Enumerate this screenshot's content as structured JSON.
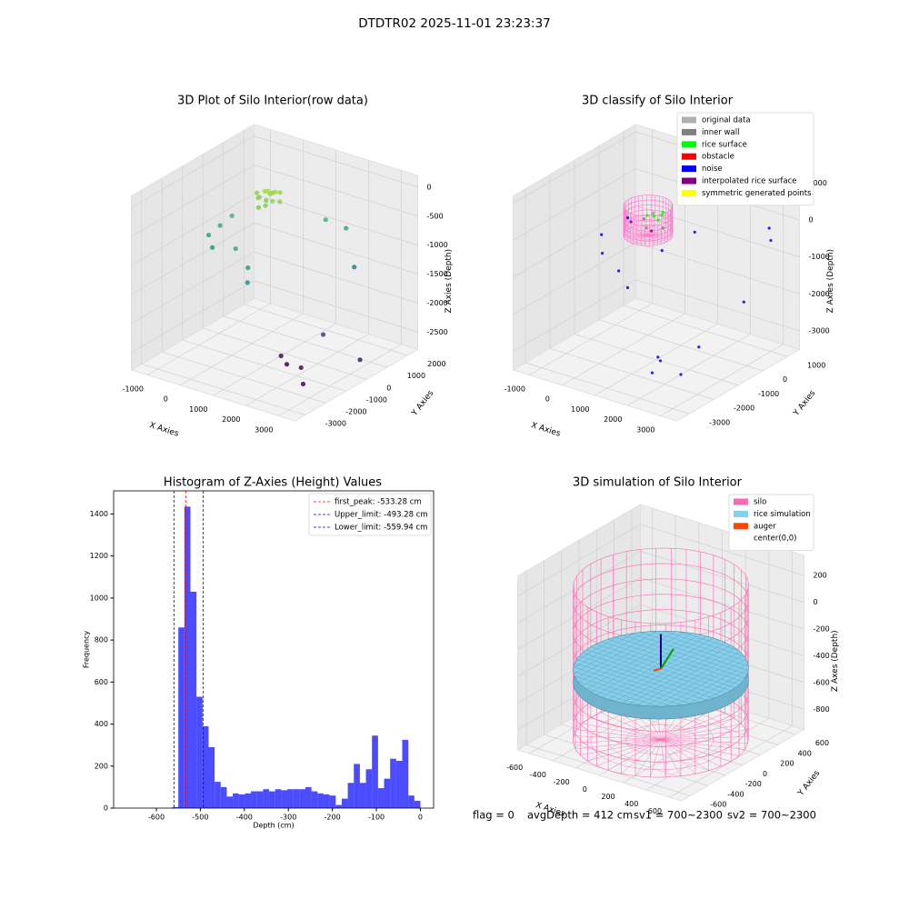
{
  "title": "DTDTR02 2025-11-01 23:23:37",
  "footer": [
    "flag = 0",
    "avgDepth = 412 cm",
    "sv1 = 700~2300",
    "sv2 = 700~2300"
  ],
  "chart_data": [
    {
      "type": "scatter3d",
      "title": "3D Plot of Silo Interior(row data)",
      "xlabel": "X Axies",
      "ylabel": "Y Axies",
      "zlabel": "Z Axies (Depth)",
      "colormap": "viridis",
      "xlim": [
        -1500,
        3500
      ],
      "xticks": [
        -1000,
        0,
        1000,
        2000,
        3000
      ],
      "ylim": [
        -3500,
        2500
      ],
      "yticks": [
        -3000,
        -2000,
        -1000,
        0,
        1000,
        2000
      ],
      "zlim": [
        -2800,
        200
      ],
      "zticks": [
        -2500,
        -2000,
        -1500,
        -1000,
        -500,
        0
      ],
      "series": [
        {
          "points": [
            [
              200,
              300,
              -200
            ],
            [
              300,
              400,
              -250
            ],
            [
              100,
              200,
              -300
            ],
            [
              400,
              500,
              -220
            ],
            [
              0,
              300,
              -350
            ],
            [
              500,
              200,
              -300
            ],
            [
              250,
              600,
              -280
            ],
            [
              150,
              450,
              -400
            ],
            [
              350,
              100,
              -380
            ],
            [
              600,
              400,
              -330
            ],
            [
              -100,
              400,
              -300
            ],
            [
              450,
              650,
              -250
            ],
            [
              200,
              0,
              -420
            ],
            [
              300,
              300,
              -180
            ],
            [
              -1200,
              -200,
              -1100
            ],
            [
              -1100,
              200,
              -1000
            ],
            [
              -900,
              -500,
              -1200
            ],
            [
              -800,
              300,
              -800
            ],
            [
              0,
              -800,
              -1000
            ],
            [
              500,
              -1000,
              -1200
            ],
            [
              800,
              -1500,
              -1300
            ],
            [
              1000,
              2000,
              -900
            ],
            [
              1500,
              2200,
              -1000
            ],
            [
              2000,
              1800,
              -1500
            ],
            [
              3300,
              0,
              -2500
            ],
            [
              1200,
              -500,
              -2700
            ],
            [
              1500,
              -700,
              -2750
            ],
            [
              2000,
              -800,
              -2700
            ],
            [
              2500,
              -1500,
              -2750
            ],
            [
              2300,
              -200,
              -2200
            ]
          ]
        }
      ]
    },
    {
      "type": "scatter3d",
      "title": "3D classify of Silo Interior",
      "xlabel": "X Axies",
      "ylabel": "Y Axies",
      "zlabel": "Z Axies (Depth)",
      "xlim": [
        -1500,
        3500
      ],
      "xticks": [
        -1000,
        0,
        1000,
        2000,
        3000
      ],
      "ylim": [
        -3500,
        1500
      ],
      "yticks": [
        -3000,
        -2000,
        -1000,
        0,
        1000
      ],
      "zlim": [
        -3500,
        1200
      ],
      "zticks": [
        -3000,
        -2000,
        -1000,
        0,
        1000
      ],
      "silo": {
        "color": "#ff77cc",
        "radius": 600,
        "top": 0,
        "bottom": -800
      },
      "legend": "upper right",
      "series": [
        {
          "name": "original data",
          "color": "#b0b0b0",
          "points": []
        },
        {
          "name": "inner wall",
          "color": "#808080",
          "points": [
            [
              100,
              -200,
              -500
            ],
            [
              -200,
              100,
              -450
            ],
            [
              300,
              200,
              -600
            ]
          ]
        },
        {
          "name": "rice surface",
          "color": "#00ff00",
          "points": [
            [
              100,
              100,
              -300
            ],
            [
              200,
              300,
              -320
            ],
            [
              0,
              200,
              -280
            ],
            [
              300,
              0,
              -310
            ],
            [
              150,
              400,
              -290
            ],
            [
              -100,
              100,
              -330
            ]
          ]
        },
        {
          "name": "obstacle",
          "color": "#ff0000",
          "points": []
        },
        {
          "name": "noise",
          "color": "#0000ff",
          "points": [
            [
              -1200,
              -300,
              -1000
            ],
            [
              -1000,
              500,
              -800
            ],
            [
              -800,
              -800,
              -1200
            ],
            [
              0,
              -1200,
              -1300
            ],
            [
              500,
              -1500,
              -1500
            ],
            [
              3000,
              1000,
              -500
            ],
            [
              2800,
              1200,
              -300
            ],
            [
              3300,
              -500,
              -1500
            ],
            [
              2300,
              -1000,
              -2800
            ],
            [
              1500,
              -1500,
              -3200
            ],
            [
              1200,
              -1200,
              -3300
            ],
            [
              2000,
              -2500,
              -3000
            ],
            [
              2500,
              -2000,
              -3100
            ],
            [
              800,
              -500,
              -800
            ],
            [
              1200,
              300,
              -500
            ]
          ]
        },
        {
          "name": "interpolated rice surface",
          "color": "#800080",
          "points": [
            [
              -300,
              -300,
              -400
            ],
            [
              400,
              -400,
              -420
            ]
          ]
        },
        {
          "name": "symmetric generated points",
          "color": "#ffff00",
          "points": []
        }
      ]
    },
    {
      "type": "histogram",
      "title": "Histogram of Z-Axies (Height) Values",
      "xlabel": "Depth (cm)",
      "ylabel": "Frequency",
      "color": "#0000ff",
      "xlim": [
        -697,
        30
      ],
      "xticks": [
        -600,
        -500,
        -400,
        -300,
        -200,
        -100,
        0
      ],
      "ylim": [
        0,
        1510
      ],
      "yticks": [
        0,
        200,
        400,
        600,
        800,
        1000,
        1200,
        1400
      ],
      "bins": [
        -563.75,
        -550,
        -536.25,
        -522.5,
        -508.75,
        -495,
        -481.25,
        -467.5,
        -453.75,
        -440,
        -426.25,
        -412.5,
        -398.75,
        -385,
        -371.25,
        -357.5,
        -343.75,
        -330,
        -316.25,
        -302.5,
        -288.75,
        -275,
        -261.25,
        -247.5,
        -233.75,
        -220,
        -206.25,
        -192.5,
        -178.75,
        -165,
        -151.25,
        -137.5,
        -123.75,
        -110,
        -96.25,
        -82.5,
        -68.75,
        -55,
        -41.25,
        -27.5,
        -13.75,
        0
      ],
      "counts": [
        5,
        860,
        1435,
        1030,
        530,
        390,
        290,
        125,
        100,
        55,
        70,
        65,
        70,
        80,
        80,
        90,
        80,
        90,
        85,
        90,
        90,
        90,
        100,
        80,
        70,
        65,
        60,
        15,
        45,
        120,
        210,
        120,
        185,
        345,
        95,
        140,
        235,
        225,
        325,
        60,
        35
      ],
      "legend": "upper right",
      "vlines": [
        {
          "label": "first_peak: -533.28 cm",
          "value": -533.28,
          "color": "#ff0000"
        },
        {
          "label": "Upper_limit: -493.28 cm",
          "value": -493.28,
          "color": "#0000ff"
        },
        {
          "label": "Lower_limit: -559.94 cm",
          "value": -559.94,
          "color": "#0000ff"
        }
      ]
    },
    {
      "type": "surface3d",
      "title": "3D simulation of Silo Interior",
      "xlabel": "X Axies",
      "ylabel": "Y Axies",
      "zlabel": "Z Axes (Depth)",
      "xlim": [
        -700,
        700
      ],
      "xticks": [
        -600,
        -400,
        -200,
        0,
        200,
        400,
        600
      ],
      "ylim": [
        -700,
        700
      ],
      "yticks": [
        -600,
        -400,
        -200,
        0,
        200,
        400,
        600
      ],
      "zlim": [
        -950,
        350
      ],
      "zticks": [
        -800,
        -600,
        -400,
        -200,
        0,
        200
      ],
      "silo": {
        "color": "#ff69b4",
        "radius": 600,
        "top": 200,
        "bottom": -950
      },
      "rice_surface": {
        "z": -420,
        "color": "#87ceeb"
      },
      "legend": "upper right",
      "series": [
        {
          "name": "silo",
          "color": "#ff69b4"
        },
        {
          "name": "rice simulation",
          "color": "#87ceeb"
        },
        {
          "name": "auger",
          "color": "#ff4500"
        },
        {
          "name": "center(0,0)",
          "color": "#ffffff"
        }
      ]
    }
  ]
}
